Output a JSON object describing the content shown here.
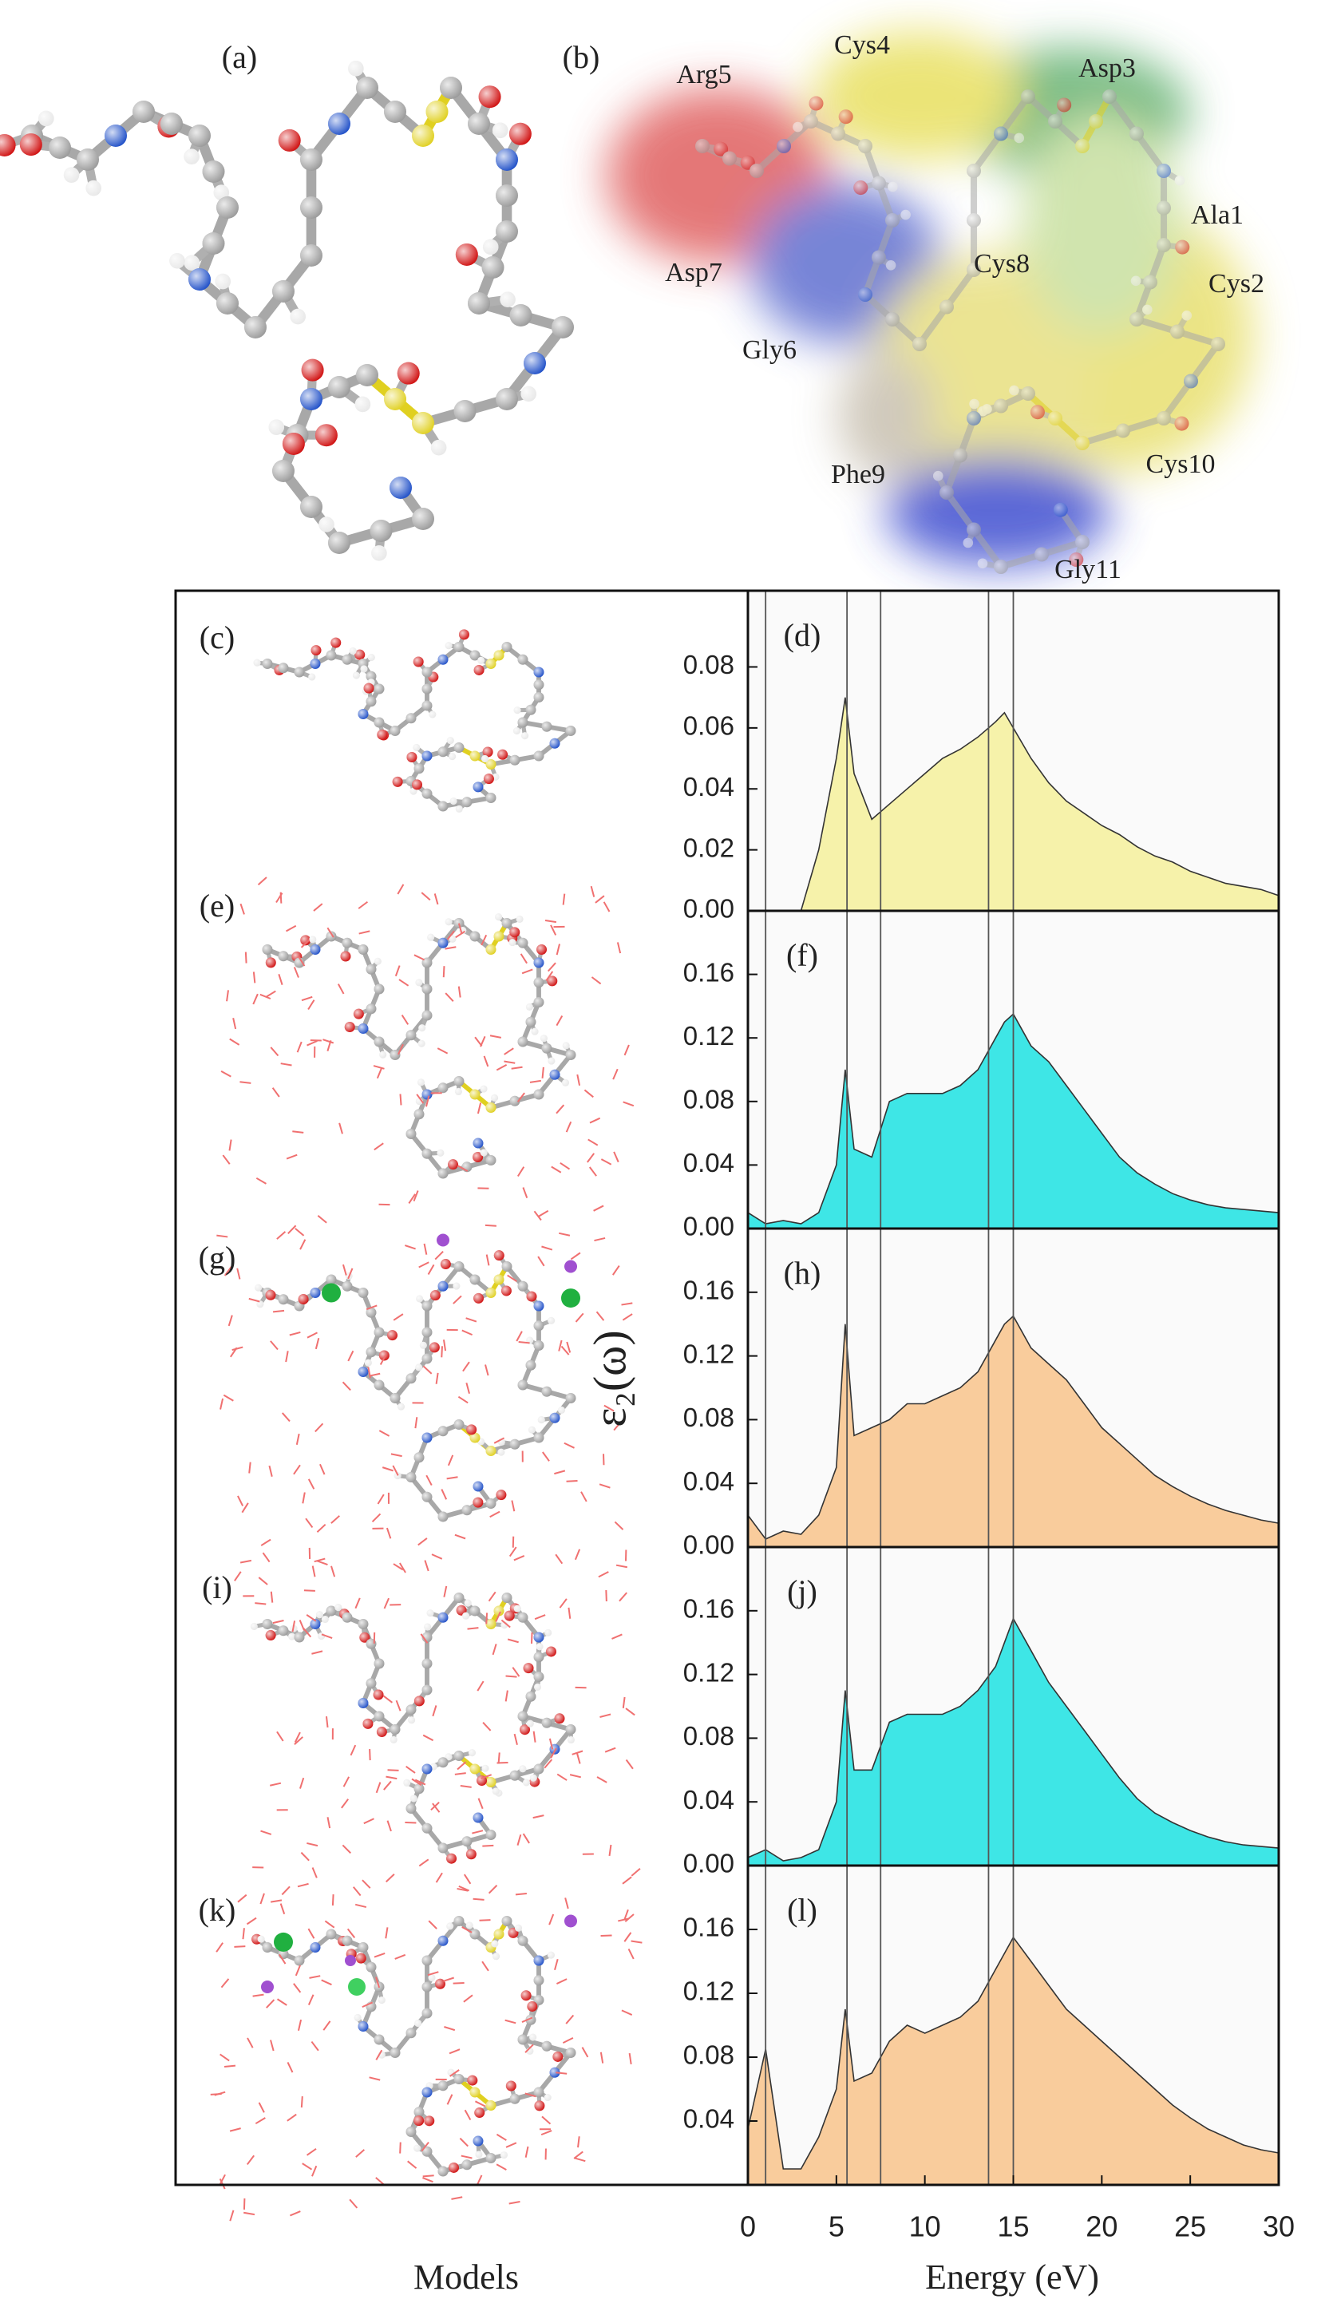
{
  "figure": {
    "panel_a": "(a)",
    "panel_b": "(b)",
    "residues": [
      "Arg5",
      "Cys4",
      "Asp3",
      "Ala1",
      "Cys2",
      "Asp7",
      "Cys8",
      "Gly6",
      "Phe9",
      "Cys10",
      "Gly11"
    ],
    "model_labels": [
      "(c)",
      "(e)",
      "(g)",
      "(i)",
      "(k)"
    ],
    "y_label": "ε₂(ω)",
    "x_label": "Energy (eV)",
    "models_label": "Models"
  },
  "chart_data": [
    {
      "type": "area",
      "label": "(d)",
      "color": "#f6f2aa",
      "x": [
        0,
        1,
        2,
        3,
        4,
        5,
        5.5,
        6,
        7,
        8,
        9,
        10,
        11,
        12,
        13,
        14,
        14.5,
        15,
        16,
        17,
        18,
        19,
        20,
        21,
        22,
        23,
        24,
        25,
        26,
        27,
        28,
        29,
        30
      ],
      "values": [
        0,
        0,
        0,
        0,
        0.02,
        0.05,
        0.07,
        0.045,
        0.03,
        0.035,
        0.04,
        0.045,
        0.05,
        0.053,
        0.057,
        0.062,
        0.065,
        0.06,
        0.05,
        0.042,
        0.036,
        0.032,
        0.028,
        0.025,
        0.021,
        0.018,
        0.016,
        0.013,
        0.011,
        0.009,
        0.008,
        0.007,
        0.005
      ],
      "xlim": [
        0,
        30
      ],
      "ylim": [
        0,
        0.105
      ],
      "yticks": [
        {
          "value": 0,
          "label": "0.00"
        },
        0.02,
        0.04,
        0.06,
        0.08
      ],
      "vlines": [
        1,
        5.6,
        7.5,
        13.6,
        15
      ]
    },
    {
      "type": "area",
      "label": "(f)",
      "color": "#3ee6e6",
      "x": [
        0,
        1,
        2,
        3,
        4,
        5,
        5.5,
        6,
        7,
        8,
        9,
        10,
        11,
        12,
        13,
        14,
        14.5,
        15,
        16,
        17,
        18,
        19,
        20,
        21,
        22,
        23,
        24,
        25,
        26,
        27,
        28,
        29,
        30
      ],
      "values": [
        0.01,
        0.003,
        0.005,
        0.003,
        0.01,
        0.04,
        0.1,
        0.05,
        0.045,
        0.08,
        0.085,
        0.085,
        0.085,
        0.09,
        0.1,
        0.12,
        0.13,
        0.135,
        0.115,
        0.105,
        0.09,
        0.075,
        0.06,
        0.045,
        0.035,
        0.028,
        0.022,
        0.018,
        0.015,
        0.013,
        0.012,
        0.011,
        0.01
      ],
      "xlim": [
        0,
        30
      ],
      "ylim": [
        0,
        0.2
      ],
      "yticks": [
        {
          "value": 0,
          "label": "0.00"
        },
        0.04,
        0.08,
        0.12,
        0.16
      ],
      "vlines": [
        1,
        5.6,
        7.5,
        13.6,
        15
      ]
    },
    {
      "type": "area",
      "label": "(h)",
      "color": "#f9cc9c",
      "x": [
        0,
        1,
        2,
        3,
        4,
        5,
        5.5,
        6,
        7,
        8,
        9,
        10,
        11,
        12,
        13,
        14,
        14.5,
        15,
        16,
        17,
        18,
        19,
        20,
        21,
        22,
        23,
        24,
        25,
        26,
        27,
        28,
        29,
        30
      ],
      "values": [
        0.02,
        0.005,
        0.01,
        0.008,
        0.02,
        0.05,
        0.14,
        0.07,
        0.075,
        0.08,
        0.09,
        0.09,
        0.095,
        0.1,
        0.11,
        0.13,
        0.14,
        0.145,
        0.125,
        0.115,
        0.105,
        0.09,
        0.075,
        0.065,
        0.055,
        0.045,
        0.038,
        0.032,
        0.027,
        0.023,
        0.02,
        0.017,
        0.015
      ],
      "xlim": [
        0,
        30
      ],
      "ylim": [
        0,
        0.2
      ],
      "yticks": [
        {
          "value": 0,
          "label": "0.00"
        },
        0.04,
        0.08,
        0.12,
        0.16
      ],
      "vlines": [
        1,
        5.6,
        7.5,
        13.6,
        15
      ]
    },
    {
      "type": "area",
      "label": "(j)",
      "color": "#3ee6e6",
      "x": [
        0,
        1,
        2,
        3,
        4,
        5,
        5.5,
        6,
        7,
        8,
        9,
        10,
        11,
        12,
        13,
        14,
        14.5,
        15,
        16,
        17,
        18,
        19,
        20,
        21,
        22,
        23,
        24,
        25,
        26,
        27,
        28,
        29,
        30
      ],
      "values": [
        0.005,
        0.01,
        0.003,
        0.005,
        0.01,
        0.04,
        0.11,
        0.06,
        0.06,
        0.09,
        0.095,
        0.095,
        0.095,
        0.1,
        0.11,
        0.125,
        0.14,
        0.155,
        0.135,
        0.115,
        0.1,
        0.085,
        0.07,
        0.055,
        0.042,
        0.033,
        0.027,
        0.022,
        0.018,
        0.015,
        0.013,
        0.012,
        0.011
      ],
      "xlim": [
        0,
        30
      ],
      "ylim": [
        0,
        0.2
      ],
      "yticks": [
        {
          "value": 0,
          "label": "0.00"
        },
        0.04,
        0.08,
        0.12,
        0.16
      ],
      "vlines": [
        1,
        5.6,
        7.5,
        13.6,
        15
      ]
    },
    {
      "type": "area",
      "label": "(l)",
      "color": "#f9cc9c",
      "x": [
        0,
        1,
        2,
        3,
        4,
        5,
        5.5,
        6,
        7,
        8,
        9,
        10,
        11,
        12,
        13,
        14,
        14.5,
        15,
        16,
        17,
        18,
        19,
        20,
        21,
        22,
        23,
        24,
        25,
        26,
        27,
        28,
        29,
        30
      ],
      "values": [
        0.035,
        0.085,
        0.01,
        0.01,
        0.03,
        0.06,
        0.11,
        0.065,
        0.07,
        0.09,
        0.1,
        0.095,
        0.1,
        0.105,
        0.115,
        0.135,
        0.145,
        0.155,
        0.14,
        0.125,
        0.11,
        0.1,
        0.09,
        0.08,
        0.07,
        0.06,
        0.05,
        0.042,
        0.035,
        0.03,
        0.025,
        0.022,
        0.02
      ],
      "xlim": [
        0,
        30
      ],
      "ylim": [
        0,
        0.2
      ],
      "xticks": [
        0,
        5,
        10,
        15,
        20,
        25,
        30
      ],
      "yticks": [
        0.04,
        0.08,
        0.12,
        0.16
      ],
      "vlines": [
        1,
        5.6,
        7.5,
        13.6,
        15
      ]
    }
  ]
}
